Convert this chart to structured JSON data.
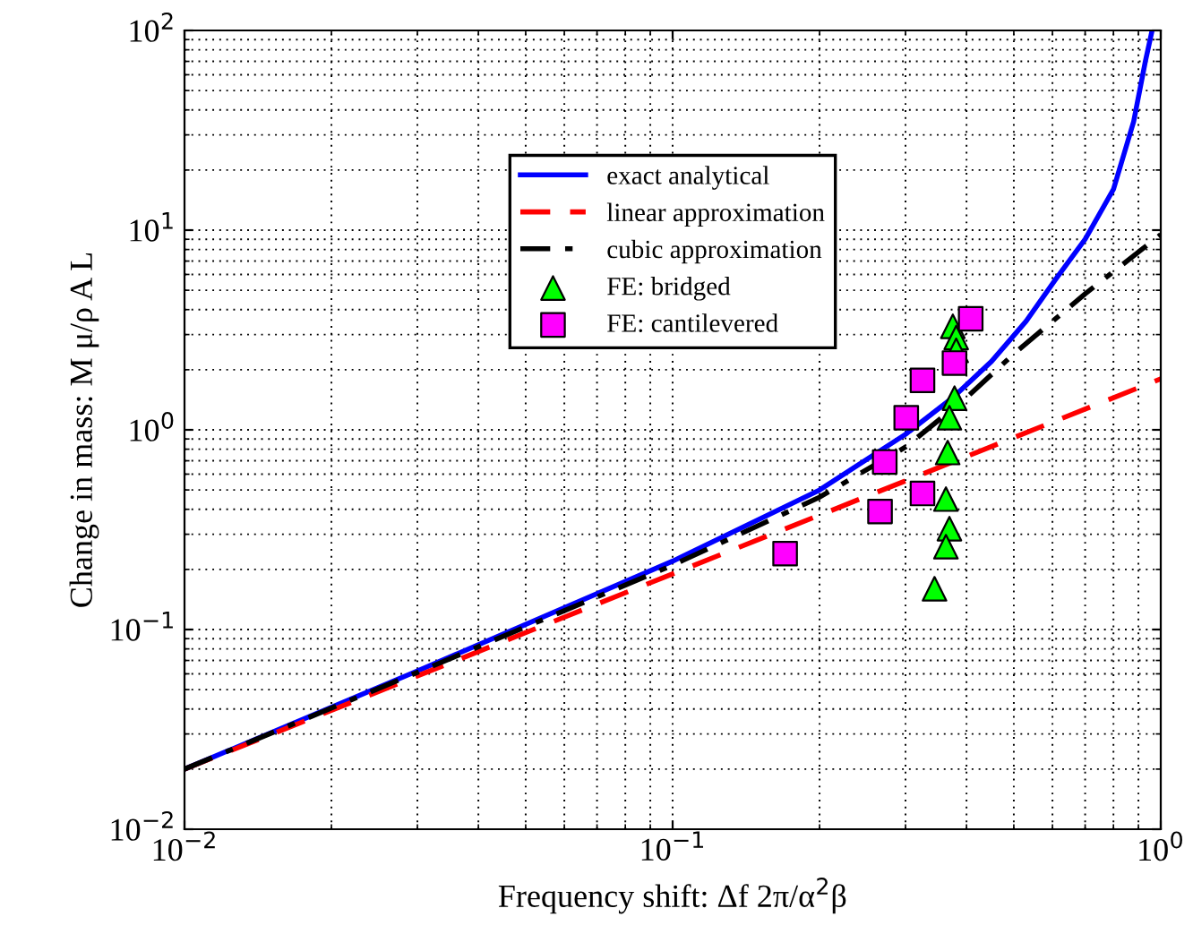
{
  "chart_data": {
    "type": "line",
    "xlabel": "Frequency shift: Δf 2π/α$^{2}$β",
    "ylabel": "Change in mass: M μ/ρ A L",
    "log": "xy",
    "grid": true,
    "legend": "top",
    "xlim": [
      0.01,
      1
    ],
    "ylim": [
      0.01,
      100
    ],
    "xticks": [
      {
        "value": 0.01,
        "label": "10$^{−2}$"
      },
      {
        "value": 0.1,
        "label": "10$^{−1}$"
      },
      {
        "value": 1,
        "label": "10$^{0}$"
      }
    ],
    "yticks": [
      {
        "value": 0.01,
        "label": "10$^{−2}$"
      },
      {
        "value": 0.1,
        "label": "10$^{−1}$"
      },
      {
        "value": 1,
        "label": "10$^{0}$"
      },
      {
        "value": 10,
        "label": "10$^{1}$"
      },
      {
        "value": 100,
        "label": "10$^{2}$"
      }
    ],
    "series": [
      {
        "name": "exact analytical",
        "line_style": "solid",
        "color": "#0000ff",
        "x": [
          0.01,
          0.03,
          0.1,
          0.2,
          0.3,
          0.375,
          0.45,
          0.53,
          0.61,
          0.7,
          0.8,
          0.88,
          0.93,
          0.96
        ],
        "values": [
          0.02,
          0.062,
          0.22,
          0.5,
          0.95,
          1.45,
          2.2,
          3.5,
          5.7,
          9,
          16,
          35,
          70,
          100
        ]
      },
      {
        "name": "linear approximation",
        "line_style": "dashed",
        "color": "#ff0000",
        "x": [
          0.01,
          0.1,
          1
        ],
        "values": [
          0.02,
          0.19,
          1.8
        ]
      },
      {
        "name": "cubic approximation",
        "line_style": "dashdot",
        "color": "#000000",
        "x": [
          0.01,
          0.03,
          0.1,
          0.2,
          0.3,
          0.4,
          0.5,
          0.7,
          1
        ],
        "values": [
          0.02,
          0.061,
          0.21,
          0.46,
          0.82,
          1.45,
          2.4,
          4.8,
          9.5
        ]
      },
      {
        "name": "FE: bridged",
        "type": "scatter",
        "marker": "triangle",
        "color": "#00ff00",
        "x": [
          0.375,
          0.381,
          0.381,
          0.378,
          0.369,
          0.366,
          0.363,
          0.369,
          0.363,
          0.344
        ],
        "values": [
          3.3,
          2.9,
          2.5,
          1.44,
          1.15,
          0.77,
          0.45,
          0.32,
          0.26,
          0.16
        ]
      },
      {
        "name": "FE: cantilevered",
        "type": "scatter",
        "marker": "square",
        "color": "#ff00ff",
        "x": [
          0.408,
          0.378,
          0.325,
          0.301,
          0.272,
          0.325,
          0.266,
          0.17
        ],
        "values": [
          3.6,
          2.16,
          1.77,
          1.15,
          0.69,
          0.48,
          0.39,
          0.24
        ]
      }
    ]
  }
}
